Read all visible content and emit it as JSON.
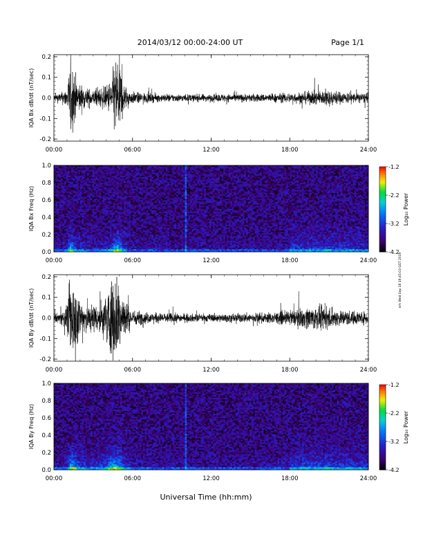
{
  "header": {
    "title": "2014/03/12  00:00-24:00 UT",
    "page": "Page 1/1"
  },
  "footer": {
    "xlabel": "Universal Time (hh:mm)",
    "stamp": "nrh Wed Sep 18 19:45:03 GST 2019"
  },
  "time_ticks": [
    "00:00",
    "06:00",
    "12:00",
    "18:00",
    "24:00"
  ],
  "colorbar": {
    "label": "Log₁₀ Power",
    "ticks": [
      "-1.2",
      "-2.2",
      "-3.2",
      "-4.2"
    ],
    "range": [
      -4.2,
      -1.2
    ]
  },
  "chart_data": [
    {
      "type": "line",
      "title": "2014/03/12  00:00-24:00 UT",
      "ylabel": "IQA Bx dB/dt (nT/sec)",
      "xlabel": "",
      "x_range_hours": [
        0,
        24
      ],
      "ylim": [
        -0.21,
        0.21
      ],
      "yticks": [
        "0.2",
        "0.1",
        "0.0",
        "-0.1",
        "-0.2"
      ],
      "yticks_values": [
        0.2,
        0.1,
        0.0,
        -0.1,
        -0.2
      ],
      "series": [
        {
          "x_hours": [
            0,
            0.5,
            1.0,
            1.3,
            1.5,
            1.8,
            2.2,
            2.5,
            3.0,
            3.5,
            4.0,
            4.4,
            4.7,
            5.0,
            5.3,
            5.7,
            6.0,
            7,
            8,
            9,
            10,
            11,
            12,
            13,
            14,
            15,
            16,
            17,
            18,
            19,
            20,
            21,
            22,
            23,
            24
          ],
          "envelope_amplitude": [
            0.02,
            0.025,
            0.05,
            0.2,
            0.15,
            0.08,
            0.06,
            0.05,
            0.04,
            0.05,
            0.06,
            0.1,
            0.21,
            0.2,
            0.08,
            0.04,
            0.03,
            0.025,
            0.02,
            0.02,
            0.018,
            0.018,
            0.018,
            0.02,
            0.02,
            0.02,
            0.02,
            0.022,
            0.025,
            0.03,
            0.035,
            0.04,
            0.03,
            0.025,
            0.025
          ]
        }
      ]
    },
    {
      "type": "heatmap",
      "ylabel": "IQA Bx Freq (Hz)",
      "x_range_hours": [
        0,
        24
      ],
      "ylim": [
        0,
        1.0
      ],
      "yticks": [
        "1.0",
        "0.8",
        "0.6",
        "0.4",
        "0.2",
        "0.0"
      ],
      "yticks_values": [
        1.0,
        0.8,
        0.6,
        0.4,
        0.2,
        0.0
      ],
      "colorbar_label": "Log₁₀ Power",
      "colorbar_range": [
        -4.2,
        -1.2
      ]
    },
    {
      "type": "line",
      "ylabel": "IQA By dB/dt (nT/sec)",
      "x_range_hours": [
        0,
        24
      ],
      "ylim": [
        -0.21,
        0.21
      ],
      "yticks": [
        "0.2",
        "0.1",
        "0.0",
        "-0.1",
        "-0.2"
      ],
      "yticks_values": [
        0.2,
        0.1,
        0.0,
        -0.1,
        -0.2
      ],
      "series": [
        {
          "x_hours": [
            0,
            0.5,
            1.0,
            1.3,
            1.5,
            1.8,
            2.2,
            2.5,
            3.0,
            3.5,
            4.0,
            4.4,
            4.7,
            5.0,
            5.3,
            5.7,
            6.0,
            7,
            8,
            9,
            10,
            11,
            12,
            13,
            14,
            15,
            16,
            17,
            18,
            19,
            20,
            21,
            22,
            23,
            24
          ],
          "envelope_amplitude": [
            0.02,
            0.03,
            0.06,
            0.21,
            0.21,
            0.12,
            0.1,
            0.08,
            0.07,
            0.08,
            0.12,
            0.21,
            0.21,
            0.2,
            0.12,
            0.06,
            0.04,
            0.03,
            0.025,
            0.025,
            0.02,
            0.02,
            0.02,
            0.02,
            0.022,
            0.025,
            0.025,
            0.03,
            0.035,
            0.05,
            0.06,
            0.05,
            0.04,
            0.035,
            0.03
          ]
        }
      ]
    },
    {
      "type": "heatmap",
      "ylabel": "IQA By Freq (Hz)",
      "x_range_hours": [
        0,
        24
      ],
      "ylim": [
        0,
        1.0
      ],
      "yticks": [
        "1.0",
        "0.8",
        "0.6",
        "0.4",
        "0.2",
        "0.0"
      ],
      "yticks_values": [
        1.0,
        0.8,
        0.6,
        0.4,
        0.2,
        0.0
      ],
      "colorbar_label": "Log₁₀ Power",
      "colorbar_range": [
        -4.2,
        -1.2
      ]
    }
  ]
}
